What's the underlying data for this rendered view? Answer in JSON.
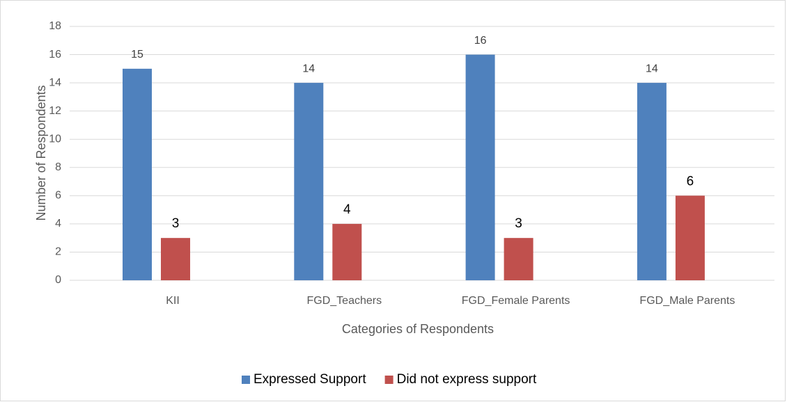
{
  "chart_data": {
    "type": "bar",
    "categories": [
      "KII",
      "FGD_Teachers",
      "FGD_Female Parents",
      "FGD_Male Parents"
    ],
    "series": [
      {
        "name": "Expressed Support",
        "color": "#4f81bd",
        "values": [
          15,
          14,
          16,
          14
        ]
      },
      {
        "name": "Did not express support",
        "color": "#c0504d",
        "values": [
          3,
          4,
          3,
          6
        ]
      }
    ],
    "xlabel": "Categories of Respondents",
    "ylabel": "Number of Respondents",
    "ylim": [
      0,
      18
    ],
    "yticks": [
      0,
      2,
      4,
      6,
      8,
      10,
      12,
      14,
      16,
      18
    ],
    "grid": true,
    "legend": "bottom"
  }
}
